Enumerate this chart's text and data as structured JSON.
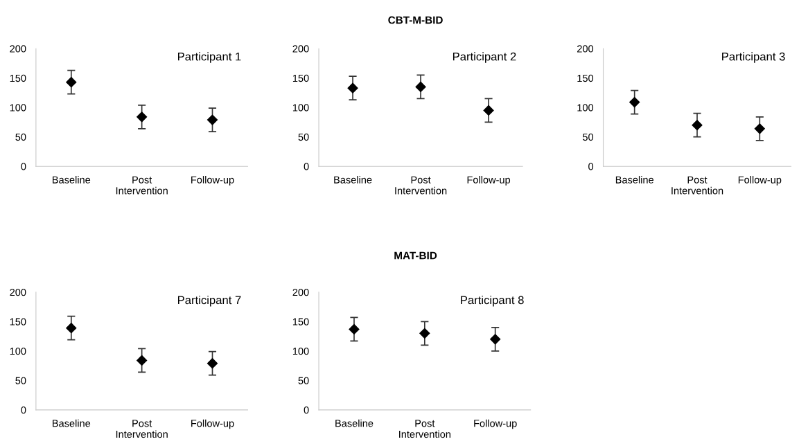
{
  "chart_data": [
    {
      "type": "scatter",
      "title": "Participant 1",
      "annotations": [
        "CBT-M-BID"
      ],
      "categories": [
        "Baseline",
        "Post\nIntervention",
        "Follow-up"
      ],
      "values": [
        143,
        84,
        79
      ],
      "errors": [
        20,
        20,
        20
      ],
      "color": "#000000",
      "marker": "diamond",
      "ylim": [
        0,
        200
      ],
      "yticks": [
        0,
        50,
        100,
        150,
        200
      ],
      "grid": false
    },
    {
      "type": "scatter",
      "title": "Participant 2",
      "categories": [
        "Baseline",
        "Post\nIntervention",
        "Follow-up"
      ],
      "values": [
        133,
        135,
        95
      ],
      "errors": [
        20,
        20,
        20
      ],
      "color": "#000000",
      "marker": "diamond",
      "ylim": [
        0,
        200
      ],
      "yticks": [
        0,
        50,
        100,
        150,
        200
      ],
      "grid": false
    },
    {
      "type": "scatter",
      "title": "Participant 3",
      "categories": [
        "Baseline",
        "Post\nIntervention",
        "Follow-up"
      ],
      "values": [
        109,
        70,
        64
      ],
      "errors": [
        20,
        20,
        20
      ],
      "color": "#000000",
      "marker": "diamond",
      "ylim": [
        0,
        200
      ],
      "yticks": [
        0,
        50,
        100,
        150,
        200
      ],
      "grid": false
    },
    {
      "type": "scatter",
      "title": "Participant 7",
      "annotations": [
        "MAT-BID"
      ],
      "categories": [
        "Baseline",
        "Post\nIntervention",
        "Follow-up"
      ],
      "values": [
        139,
        84,
        79
      ],
      "errors": [
        20,
        20,
        20
      ],
      "color": "#000000",
      "marker": "diamond",
      "ylim": [
        0,
        200
      ],
      "yticks": [
        0,
        50,
        100,
        150,
        200
      ],
      "grid": false
    },
    {
      "type": "scatter",
      "title": "Participant 8",
      "categories": [
        "Baseline",
        "Post\nIntervention",
        "Follow-up"
      ],
      "values": [
        137,
        130,
        120
      ],
      "errors": [
        20,
        20,
        20
      ],
      "color": "#000000",
      "marker": "diamond",
      "ylim": [
        0,
        200
      ],
      "yticks": [
        0,
        50,
        100,
        150,
        200
      ],
      "grid": false
    }
  ]
}
